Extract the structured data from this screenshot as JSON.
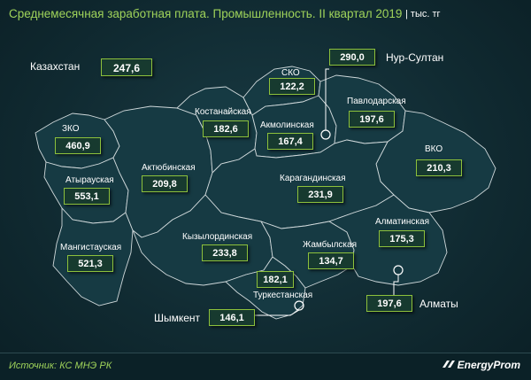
{
  "header": {
    "title": "Среднемесячная заработная плата. Промышленность. II квартал 2019",
    "unit": "| тыс. тг"
  },
  "country": {
    "name": "Казахстан",
    "value": "247,6"
  },
  "regions": {
    "zko": {
      "name": "ЗКО",
      "value": "460,9"
    },
    "atyrau": {
      "name": "Атырауская",
      "value": "553,1"
    },
    "mangistau": {
      "name": "Мангистауская",
      "value": "521,3"
    },
    "aktobe": {
      "name": "Актюбинская",
      "value": "209,8"
    },
    "kostanay": {
      "name": "Костанайская",
      "value": "182,6"
    },
    "sko": {
      "name": "СКО",
      "value": "122,2"
    },
    "akmola": {
      "name": "Акмолинская",
      "value": "167,4"
    },
    "pavlodar": {
      "name": "Павлодарская",
      "value": "197,6"
    },
    "vko": {
      "name": "ВКО",
      "value": "210,3"
    },
    "karaganda": {
      "name": "Карагандинская",
      "value": "231,9"
    },
    "kyzylorda": {
      "name": "Кызылординская",
      "value": "233,8"
    },
    "zhambyl": {
      "name": "Жамбылская",
      "value": "134,7"
    },
    "almaty_obl": {
      "name": "Алматинская",
      "value": "175,3"
    },
    "turkestan": {
      "name": "Туркестанская",
      "value": "182,1"
    }
  },
  "cities": {
    "nursultan": {
      "name": "Нур-Султан",
      "value": "290,0"
    },
    "almaty": {
      "name": "Алматы",
      "value": "197,6"
    },
    "shymkent": {
      "name": "Шымкент",
      "value": "146,1"
    }
  },
  "footer": {
    "source": "Источник: КС МНЭ РК",
    "brand": "EnergyProm"
  },
  "colors": {
    "accent": "#8dc13c",
    "title": "#9fd35a",
    "region_fill": "#163a43",
    "border": "#cfd8da"
  }
}
